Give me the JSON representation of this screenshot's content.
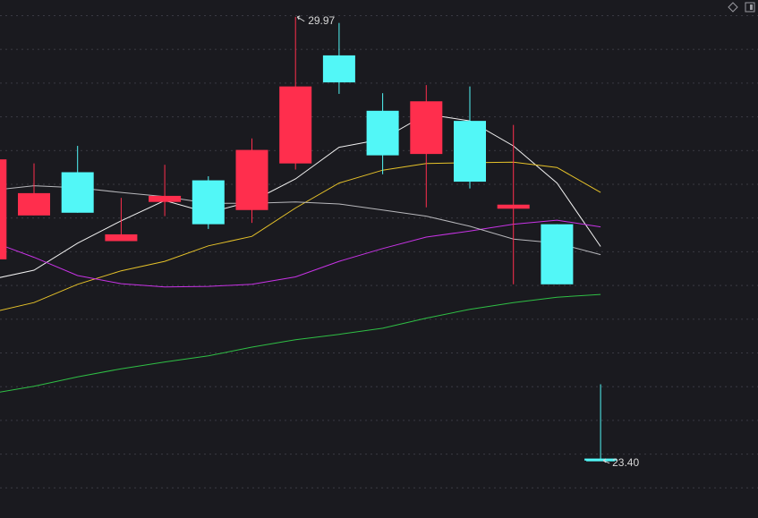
{
  "chart_data": {
    "type": "candlestick",
    "open": [
      26.38,
      27.03,
      27.67,
      26.65,
      27.23,
      27.55,
      27.11,
      27.8,
      29.4,
      28.58,
      27.94,
      28.43,
      27.13,
      26.9,
      23.43
    ],
    "high": [
      27.86,
      27.8,
      28.06,
      27.29,
      27.78,
      27.61,
      28.17,
      29.97,
      29.88,
      28.84,
      28.96,
      28.94,
      28.37,
      26.9,
      24.53
    ],
    "low": [
      26.38,
      27.03,
      27.07,
      26.65,
      27.02,
      26.83,
      26.92,
      27.71,
      28.83,
      27.64,
      27.15,
      27.43,
      26.01,
      26.01,
      23.4
    ],
    "close": [
      27.86,
      27.36,
      27.07,
      26.75,
      27.32,
      26.9,
      28.0,
      28.94,
      29.0,
      27.92,
      28.72,
      27.53,
      27.19,
      26.01,
      23.4
    ],
    "up_color": "#ff2e4d",
    "down_color": "#52f7f7",
    "series": [
      {
        "color": "#f2f2f2",
        "values": [
          26.08,
          26.22,
          26.62,
          26.95,
          27.25,
          27.07,
          27.24,
          27.57,
          28.04,
          28.16,
          28.53,
          28.43,
          28.06,
          27.51,
          26.57
        ]
      },
      {
        "color": "#e6c229",
        "values": [
          25.59,
          25.74,
          26.01,
          26.21,
          26.35,
          26.58,
          26.72,
          27.14,
          27.51,
          27.7,
          27.8,
          27.81,
          27.82,
          27.74,
          27.37
        ]
      },
      {
        "color": "#c833e6",
        "values": [
          26.65,
          26.41,
          26.14,
          26.02,
          25.97,
          25.98,
          26.01,
          26.12,
          26.35,
          26.54,
          26.71,
          26.8,
          26.9,
          26.96,
          26.86
        ]
      },
      {
        "color": "#b8b8bc",
        "values": [
          27.4,
          27.47,
          27.44,
          27.37,
          27.31,
          27.21,
          27.21,
          27.23,
          27.2,
          27.11,
          27.02,
          26.87,
          26.68,
          26.62,
          26.45
        ]
      },
      {
        "color": "#2fbf45",
        "values": [
          24.39,
          24.5,
          24.64,
          24.76,
          24.86,
          24.95,
          25.08,
          25.19,
          25.27,
          25.36,
          25.51,
          25.64,
          25.74,
          25.82,
          25.86
        ]
      }
    ],
    "ylim": [
      22.55,
      30.22
    ],
    "max_label": "29.97",
    "min_label": "23.40"
  }
}
